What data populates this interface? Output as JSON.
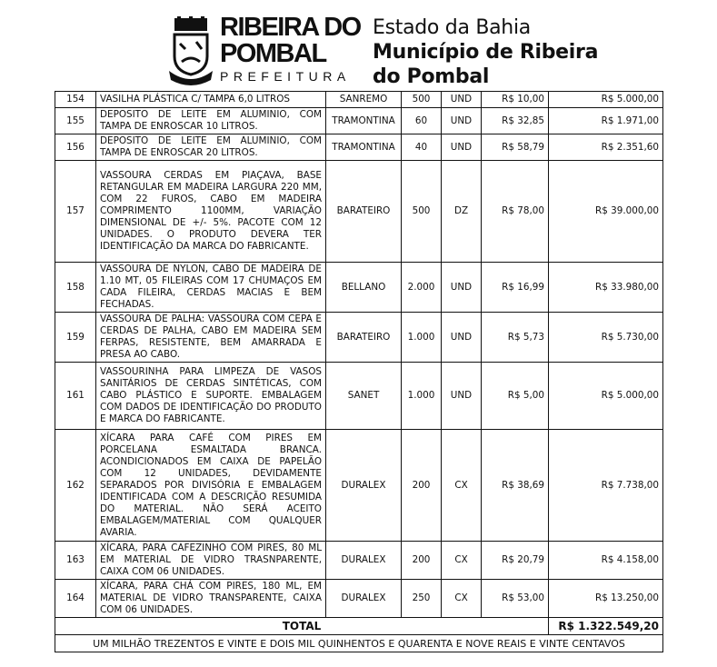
{
  "header": {
    "brand_line1": "RIBEIRA DO",
    "brand_line2": "POMBAL",
    "brand_line3": "PREFEITURA",
    "state": "Estado da Bahia",
    "municipality_line1": "Município de Ribeira",
    "municipality_line2": "do Pombal"
  },
  "rows": [
    {
      "num": "154",
      "desc": "VASILHA PLÁSTICA C/ TAMPA 6,0 LITROS",
      "brand": "SANREMO",
      "qty": "500",
      "unit": "UND",
      "price": "R$ 10,00",
      "total": "R$ 5.000,00"
    },
    {
      "num": "155",
      "desc": "DEPOSITO DE LEITE EM ALUMINIO, COM TAMPA DE ENROSCAR 10 LITROS.",
      "brand": "TRAMONTINA",
      "qty": "60",
      "unit": "UND",
      "price": "R$ 32,85",
      "total": "R$ 1.971,00"
    },
    {
      "num": "156",
      "desc": "DEPOSITO DE LEITE EM ALUMINIO, COM TAMPA DE ENROSCAR 20 LITROS.",
      "brand": "TRAMONTINA",
      "qty": "40",
      "unit": "UND",
      "price": "R$ 58,79",
      "total": "R$ 2.351,60"
    },
    {
      "num": "157",
      "desc": "VASSOURA CERDAS EM PIAÇAVA, BASE RETANGULAR EM MADEIRA LARGURA 220 MM, COM 22 FUROS, CABO EM MADEIRA COMPRIMENTO 1100MM, VARIAÇÃO DIMENSIONAL DE +/- 5%. PACOTE COM 12 UNIDADES. O PRODUTO DEVERA TER IDENTIFICAÇÃO DA MARCA DO FABRICANTE.",
      "brand": "BARATEIRO",
      "qty": "500",
      "unit": "DZ",
      "price": "R$ 78,00",
      "total": "R$ 39.000,00"
    },
    {
      "num": "158",
      "desc": "VASSOURA DE NYLON, CABO DE MADEIRA DE 1.10 MT, 05 FILEIRAS COM 17 CHUMAÇOS EM CADA FILEIRA, CERDAS MACIAS E BEM FECHADAS.",
      "brand": "BELLANO",
      "qty": "2.000",
      "unit": "UND",
      "price": "R$ 16,99",
      "total": "R$ 33.980,00"
    },
    {
      "num": "159",
      "desc": "VASSOURA DE PALHA: VASSOURA COM CEPA E CERDAS DE PALHA, CABO EM MADEIRA SEM FERPAS, RESISTENTE, BEM AMARRADA E PRESA AO CABO.",
      "brand": "BARATEIRO",
      "qty": "1.000",
      "unit": "UND",
      "price": "R$ 5,73",
      "total": "R$ 5.730,00"
    },
    {
      "num": "161",
      "desc": "VASSOURINHA PARA LIMPEZA DE VASOS SANITÁRIOS DE CERDAS SINTÉTICAS, COM CABO PLÁSTICO E SUPORTE. EMBALAGEM COM DADOS DE IDENTIFICAÇÃO DO PRODUTO E MARCA DO FABRICANTE.",
      "brand": "SANET",
      "qty": "1.000",
      "unit": "UND",
      "price": "R$ 5,00",
      "total": "R$ 5.000,00"
    },
    {
      "num": "162",
      "desc": "XÍCARA PARA CAFÉ COM PIRES EM PORCELANA ESMALTADA BRANCA. ACONDICIONADOS EM CAIXA DE PAPELÃO COM 12 UNIDADES, DEVIDAMENTE SEPARADOS POR DIVISÓRIA E EMBALAGEM IDENTIFICADA COM A DESCRIÇÃO RESUMIDA DO MATERIAL. NÃO SERÁ ACEITO EMBALAGEM/MATERIAL COM QUALQUER AVARIA.",
      "brand": "DURALEX",
      "qty": "200",
      "unit": "CX",
      "price": "R$ 38,69",
      "total": "R$ 7.738,00"
    },
    {
      "num": "163",
      "desc": "XÍCARA, PARA CAFEZINHO COM PIRES, 80 ML EM MATERIAL DE VIDRO TRASNPARENTE, CAIXA COM 06 UNIDADES.",
      "brand": "DURALEX",
      "qty": "200",
      "unit": "CX",
      "price": "R$ 20,79",
      "total": "R$ 4.158,00"
    },
    {
      "num": "164",
      "desc": "XÍCARA, PARA CHÁ COM PIRES, 180 ML, EM MATERIAL DE VIDRO TRANSPARENTE, CAIXA COM 06 UNIDADES.",
      "brand": "DURALEX",
      "qty": "250",
      "unit": "CX",
      "price": "R$ 53,00",
      "total": "R$ 13.250,00"
    }
  ],
  "total": {
    "label": "TOTAL",
    "value": "R$ 1.322.549,20"
  },
  "total_in_words": "UM MILHÃO TREZENTOS E VINTE E DOIS MIL QUINHENTOS E QUARENTA E NOVE REAIS E VINTE CENTAVOS"
}
